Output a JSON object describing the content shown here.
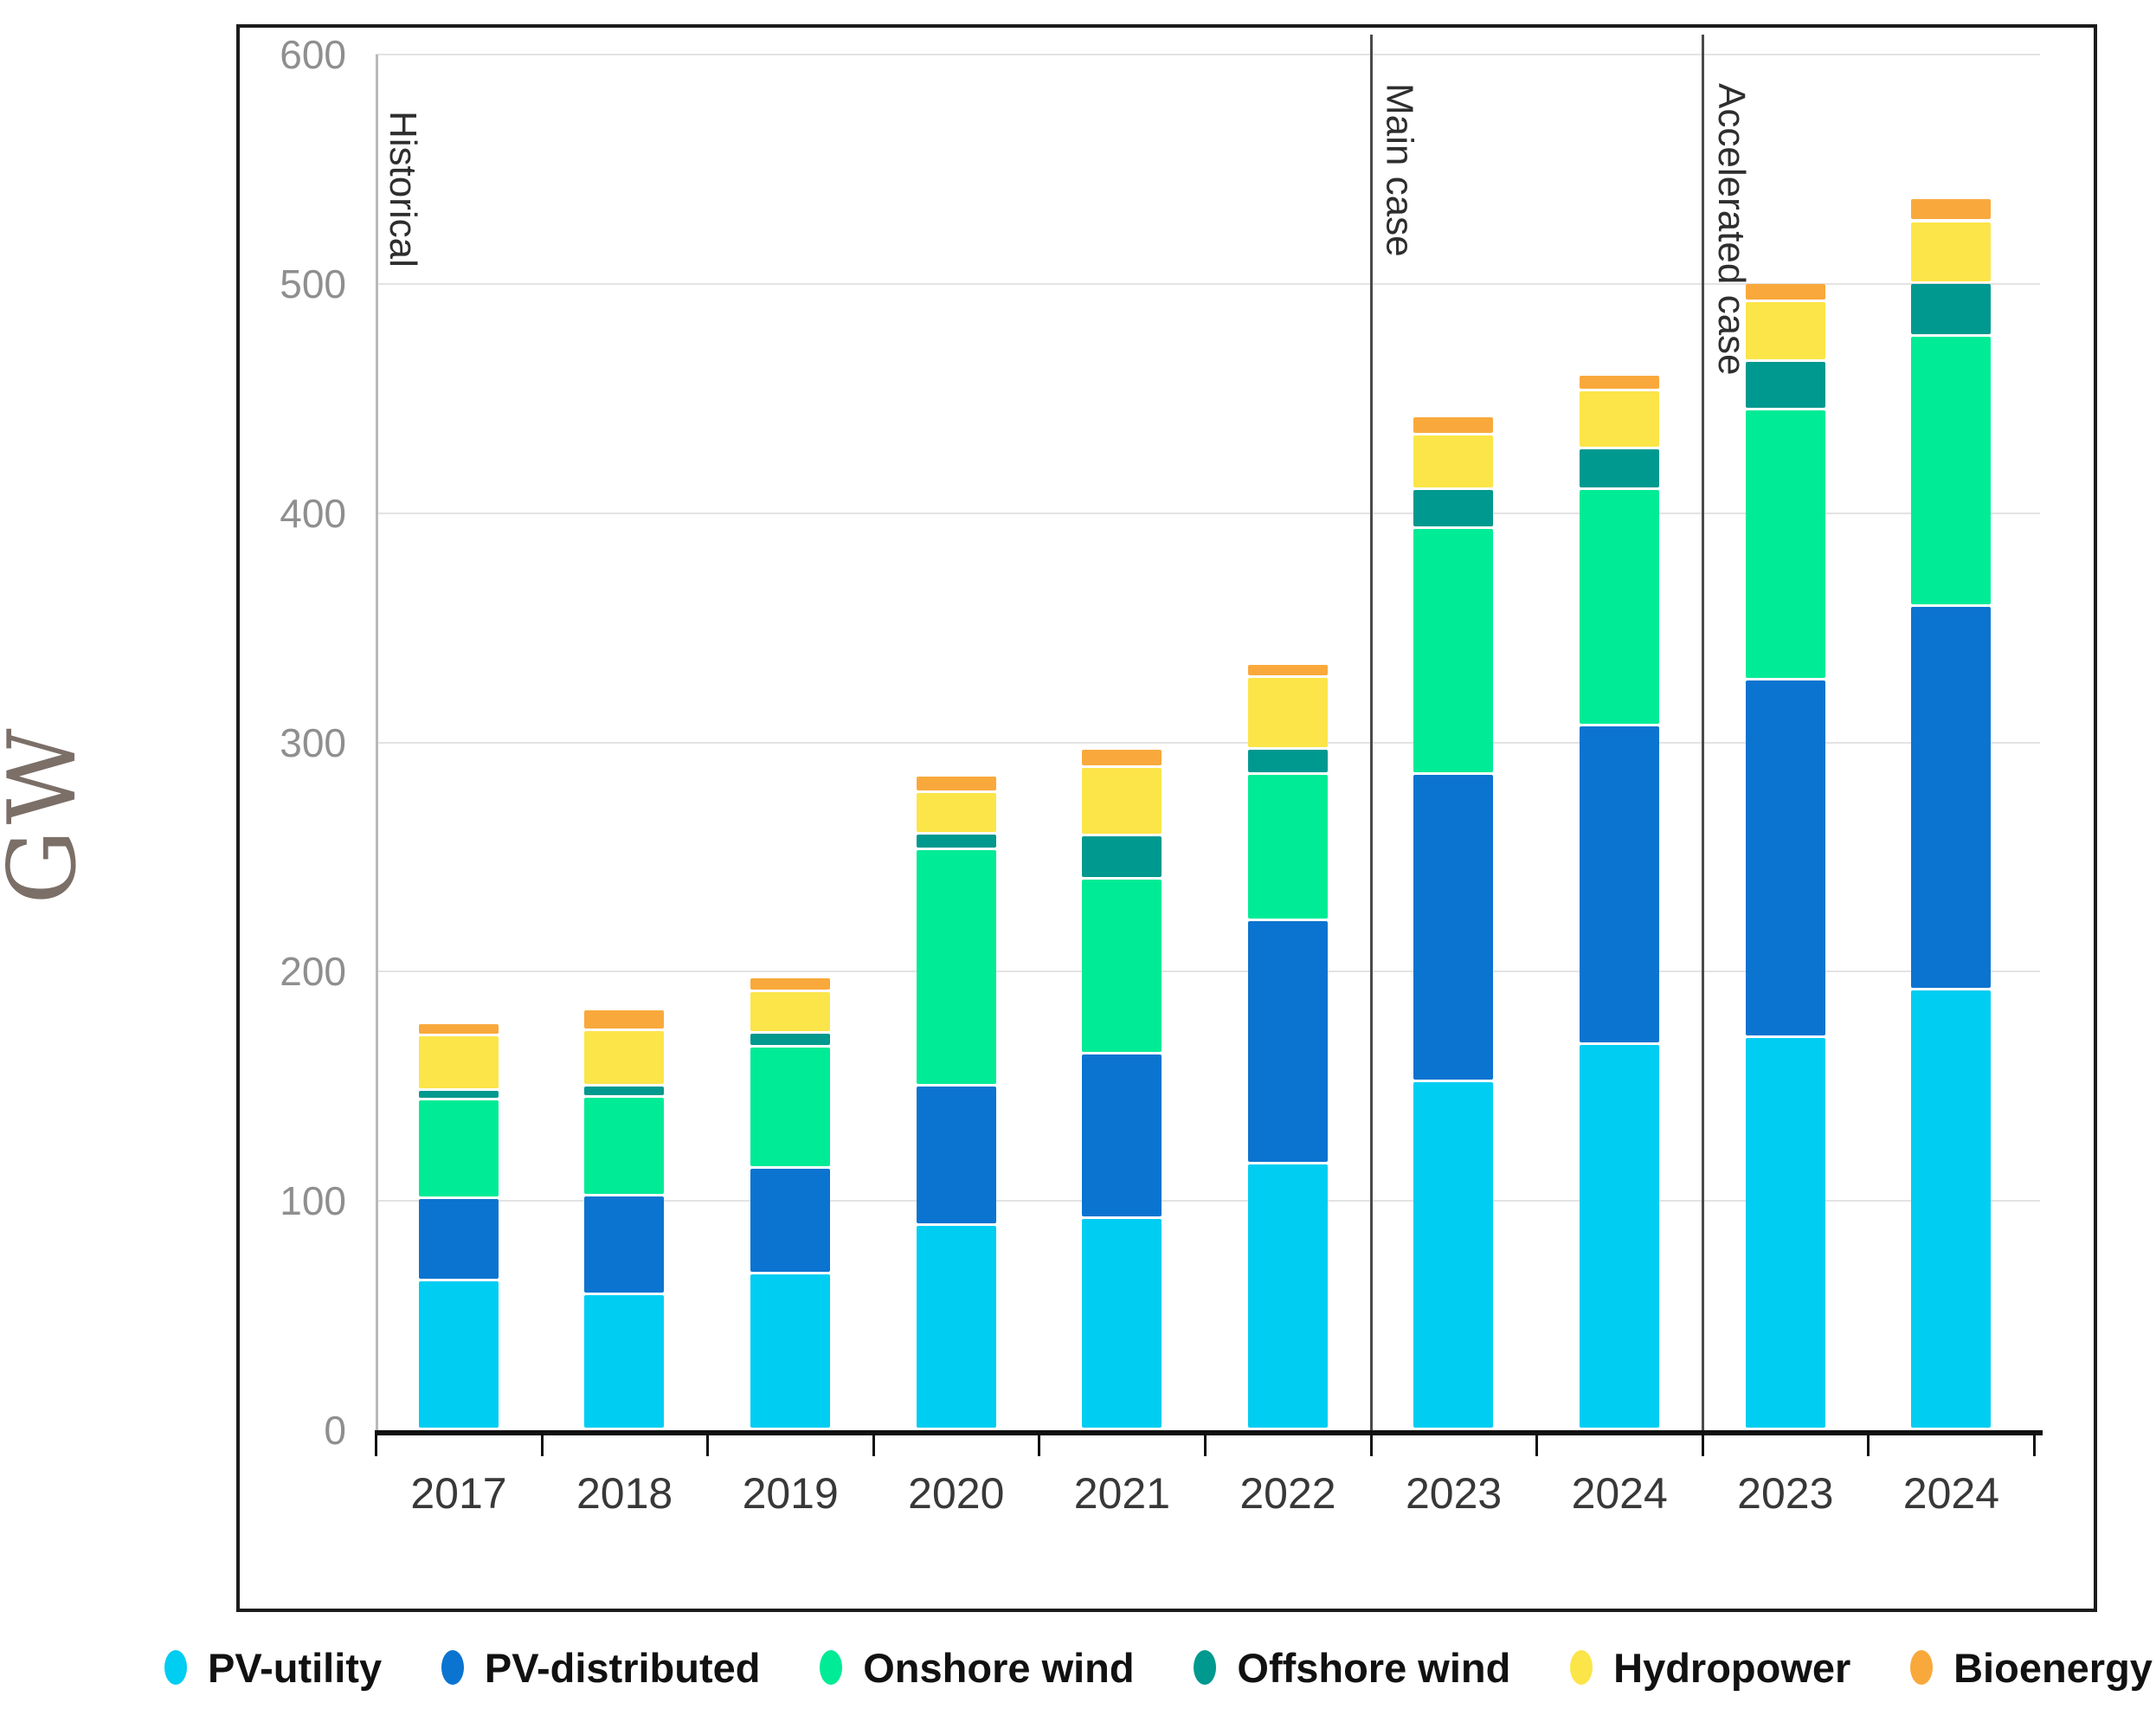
{
  "ylabel": "GW",
  "legend": [
    {
      "label": "PV-utility",
      "color": "#00CDF2"
    },
    {
      "label": "PV-distributed",
      "color": "#0B74D0"
    },
    {
      "label": "Onshore wind",
      "color": "#00EB96"
    },
    {
      "label": "Offshore wind",
      "color": "#00998F"
    },
    {
      "label": "Hydropower",
      "color": "#FCE549"
    },
    {
      "label": "Bioenergy",
      "color": "#F9A93C"
    }
  ],
  "chart_data": {
    "type": "bar",
    "stacked": true,
    "unit": "GW",
    "title": "",
    "xlabel": "",
    "ylabel": "GW",
    "categories": [
      "2017",
      "2018",
      "2019",
      "2020",
      "2021",
      "2022",
      "2023",
      "2024",
      "2023",
      "2024"
    ],
    "groups": [
      {
        "label": "Historical",
        "span": 6
      },
      {
        "label": "Main case",
        "span": 2
      },
      {
        "label": "Accelerated case",
        "span": 2
      }
    ],
    "series": [
      {
        "name": "PV-utility",
        "color": "#00CDF2",
        "values": [
          65,
          59,
          68,
          89,
          92,
          116,
          152,
          168,
          171,
          192
        ]
      },
      {
        "name": "PV-distributed",
        "color": "#0B74D0",
        "values": [
          36,
          43,
          46,
          61,
          72,
          106,
          134,
          139,
          156,
          167
        ]
      },
      {
        "name": "Onshore wind",
        "color": "#00EB96",
        "values": [
          43,
          43,
          53,
          103,
          76,
          64,
          107,
          103,
          118,
          118
        ]
      },
      {
        "name": "Offshore wind",
        "color": "#00998F",
        "values": [
          4,
          5,
          6,
          7,
          19,
          11,
          17,
          18,
          21,
          23
        ]
      },
      {
        "name": "Hydropower",
        "color": "#FCE549",
        "values": [
          24,
          24,
          18,
          18,
          30,
          31,
          24,
          25,
          26,
          27
        ]
      },
      {
        "name": "Bioenergy",
        "color": "#F9A93C",
        "values": [
          5,
          9,
          6,
          7,
          8,
          6,
          8,
          7,
          8,
          10
        ]
      }
    ],
    "totals": [
      177,
      183,
      197,
      285,
      297,
      334,
      442,
      460,
      500,
      537
    ],
    "ylim": [
      0,
      600
    ],
    "yticks": [
      0,
      100,
      200,
      300,
      400,
      500,
      600
    ],
    "grid": true,
    "legend_position": "bottom"
  }
}
